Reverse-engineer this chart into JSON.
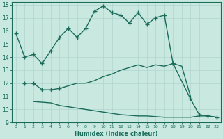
{
  "background_color": "#c8e8e0",
  "grid_color": "#b0d4cc",
  "line_color": "#1a6b5a",
  "marker": "+",
  "markersize": 4,
  "linewidth": 1.0,
  "xlabel": "Humidex (Indice chaleur)",
  "xlim": [
    -0.5,
    23.5
  ],
  "ylim": [
    9,
    18.2
  ],
  "yticks": [
    9,
    10,
    11,
    12,
    13,
    14,
    15,
    16,
    17,
    18
  ],
  "xticks": [
    0,
    1,
    2,
    3,
    4,
    5,
    6,
    7,
    8,
    9,
    10,
    11,
    12,
    13,
    14,
    15,
    16,
    17,
    18,
    19,
    20,
    21,
    22,
    23
  ],
  "curve1_x": [
    0,
    1,
    2,
    3,
    4,
    5,
    6,
    7,
    8,
    9,
    10,
    11,
    12,
    13,
    14,
    15,
    16,
    17,
    18
  ],
  "curve1_y": [
    15.8,
    14.0,
    14.2,
    13.5,
    14.5,
    15.5,
    16.2,
    15.5,
    16.2,
    17.5,
    17.9,
    17.4,
    17.2,
    16.6,
    17.4,
    16.5,
    17.0,
    17.2,
    13.5
  ],
  "curve2_x": [
    18,
    20,
    21,
    22,
    23
  ],
  "curve2_y": [
    13.5,
    10.8,
    9.6,
    9.5,
    9.4
  ],
  "curve3_x": [
    1,
    2,
    3,
    4,
    5,
    6,
    7,
    8,
    9,
    10,
    11,
    12,
    13,
    14,
    15,
    16,
    17,
    18,
    19,
    20
  ],
  "curve3_y": [
    12.0,
    12.0,
    11.5,
    11.5,
    11.6,
    11.8,
    12.0,
    12.0,
    12.2,
    12.5,
    12.7,
    13.0,
    13.2,
    13.4,
    13.2,
    13.4,
    13.3,
    13.5,
    13.3,
    11.0
  ],
  "curve4_x": [
    2,
    4,
    5,
    6,
    7,
    8,
    9,
    10,
    11,
    12,
    13,
    14,
    15,
    16,
    17,
    18,
    19,
    20,
    21,
    22,
    23
  ],
  "curve4_y": [
    10.6,
    10.5,
    10.3,
    10.2,
    10.1,
    10.0,
    9.9,
    9.8,
    9.7,
    9.6,
    9.55,
    9.5,
    9.5,
    9.45,
    9.4,
    9.4,
    9.4,
    9.4,
    9.5,
    9.5,
    9.4
  ],
  "curve1_marker_x": [
    0,
    1,
    2,
    3,
    4,
    5,
    6,
    7,
    8,
    9,
    10,
    11,
    12,
    13,
    14,
    15,
    16,
    17,
    18
  ],
  "curve3_marker_x": [
    1,
    2,
    3,
    4,
    5
  ],
  "curve3_marker_y": [
    12.0,
    12.0,
    11.5,
    11.5,
    11.6
  ]
}
